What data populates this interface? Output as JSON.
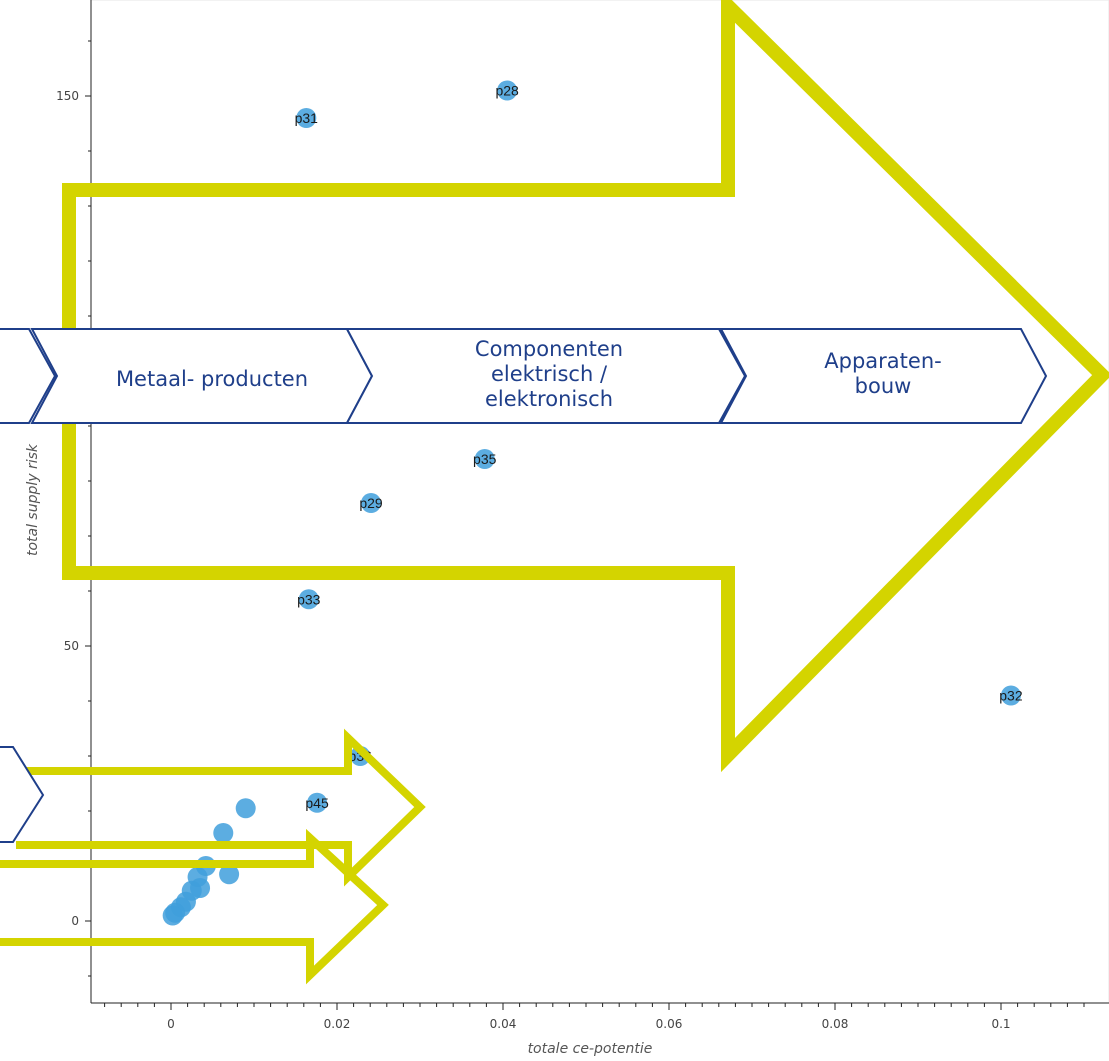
{
  "chart_data": {
    "type": "scatter",
    "xlabel": "totale ce-potentie",
    "ylabel": "total supply risk",
    "xlim": [
      -0.008,
      0.112
    ],
    "ylim": [
      -15,
      168
    ],
    "x_ticks": [
      0,
      0.02,
      0.04,
      0.06,
      0.08,
      0.1
    ],
    "x_tick_labels": [
      "0",
      "0.02",
      "0.04",
      "0.06",
      "0.08",
      "0.1"
    ],
    "y_ticks": [
      0,
      50,
      150
    ],
    "y_tick_labels": [
      "0",
      "50",
      "150"
    ],
    "point_color": "#3f9fdc",
    "labeled_points": [
      {
        "label": "p28",
        "x": 0.0405,
        "y": 151
      },
      {
        "label": "p31",
        "x": 0.0163,
        "y": 146
      },
      {
        "label": "p35",
        "x": 0.0378,
        "y": 84
      },
      {
        "label": "p29",
        "x": 0.0241,
        "y": 76
      },
      {
        "label": "p33",
        "x": 0.0166,
        "y": 58.5
      },
      {
        "label": "p32",
        "x": 0.1012,
        "y": 41
      },
      {
        "label": "p36",
        "x": 0.0228,
        "y": 30
      },
      {
        "label": "p45",
        "x": 0.0176,
        "y": 21.5
      }
    ],
    "unlabeled_points": [
      {
        "x": 0.009,
        "y": 20.5
      },
      {
        "x": 0.0063,
        "y": 16
      },
      {
        "x": 0.0042,
        "y": 10
      },
      {
        "x": 0.007,
        "y": 8.5
      },
      {
        "x": 0.0032,
        "y": 8
      },
      {
        "x": 0.0035,
        "y": 6
      },
      {
        "x": 0.0025,
        "y": 5.5
      },
      {
        "x": 0.0018,
        "y": 3.5
      },
      {
        "x": 0.0012,
        "y": 2.5
      },
      {
        "x": 0.0005,
        "y": 1.5
      },
      {
        "x": 0.0002,
        "y": 1
      }
    ]
  },
  "overlay": {
    "arrow_color": "#d4d400",
    "chevron_color": "#1f3f8a",
    "chevrons": [
      {
        "id": "metaal",
        "lines": [
          "Metaal- producten"
        ]
      },
      {
        "id": "componenten",
        "lines": [
          "Componenten",
          "elektrisch /",
          "elektronisch"
        ]
      },
      {
        "id": "apparaten",
        "lines": [
          "Apparaten-",
          "bouw"
        ]
      }
    ]
  }
}
